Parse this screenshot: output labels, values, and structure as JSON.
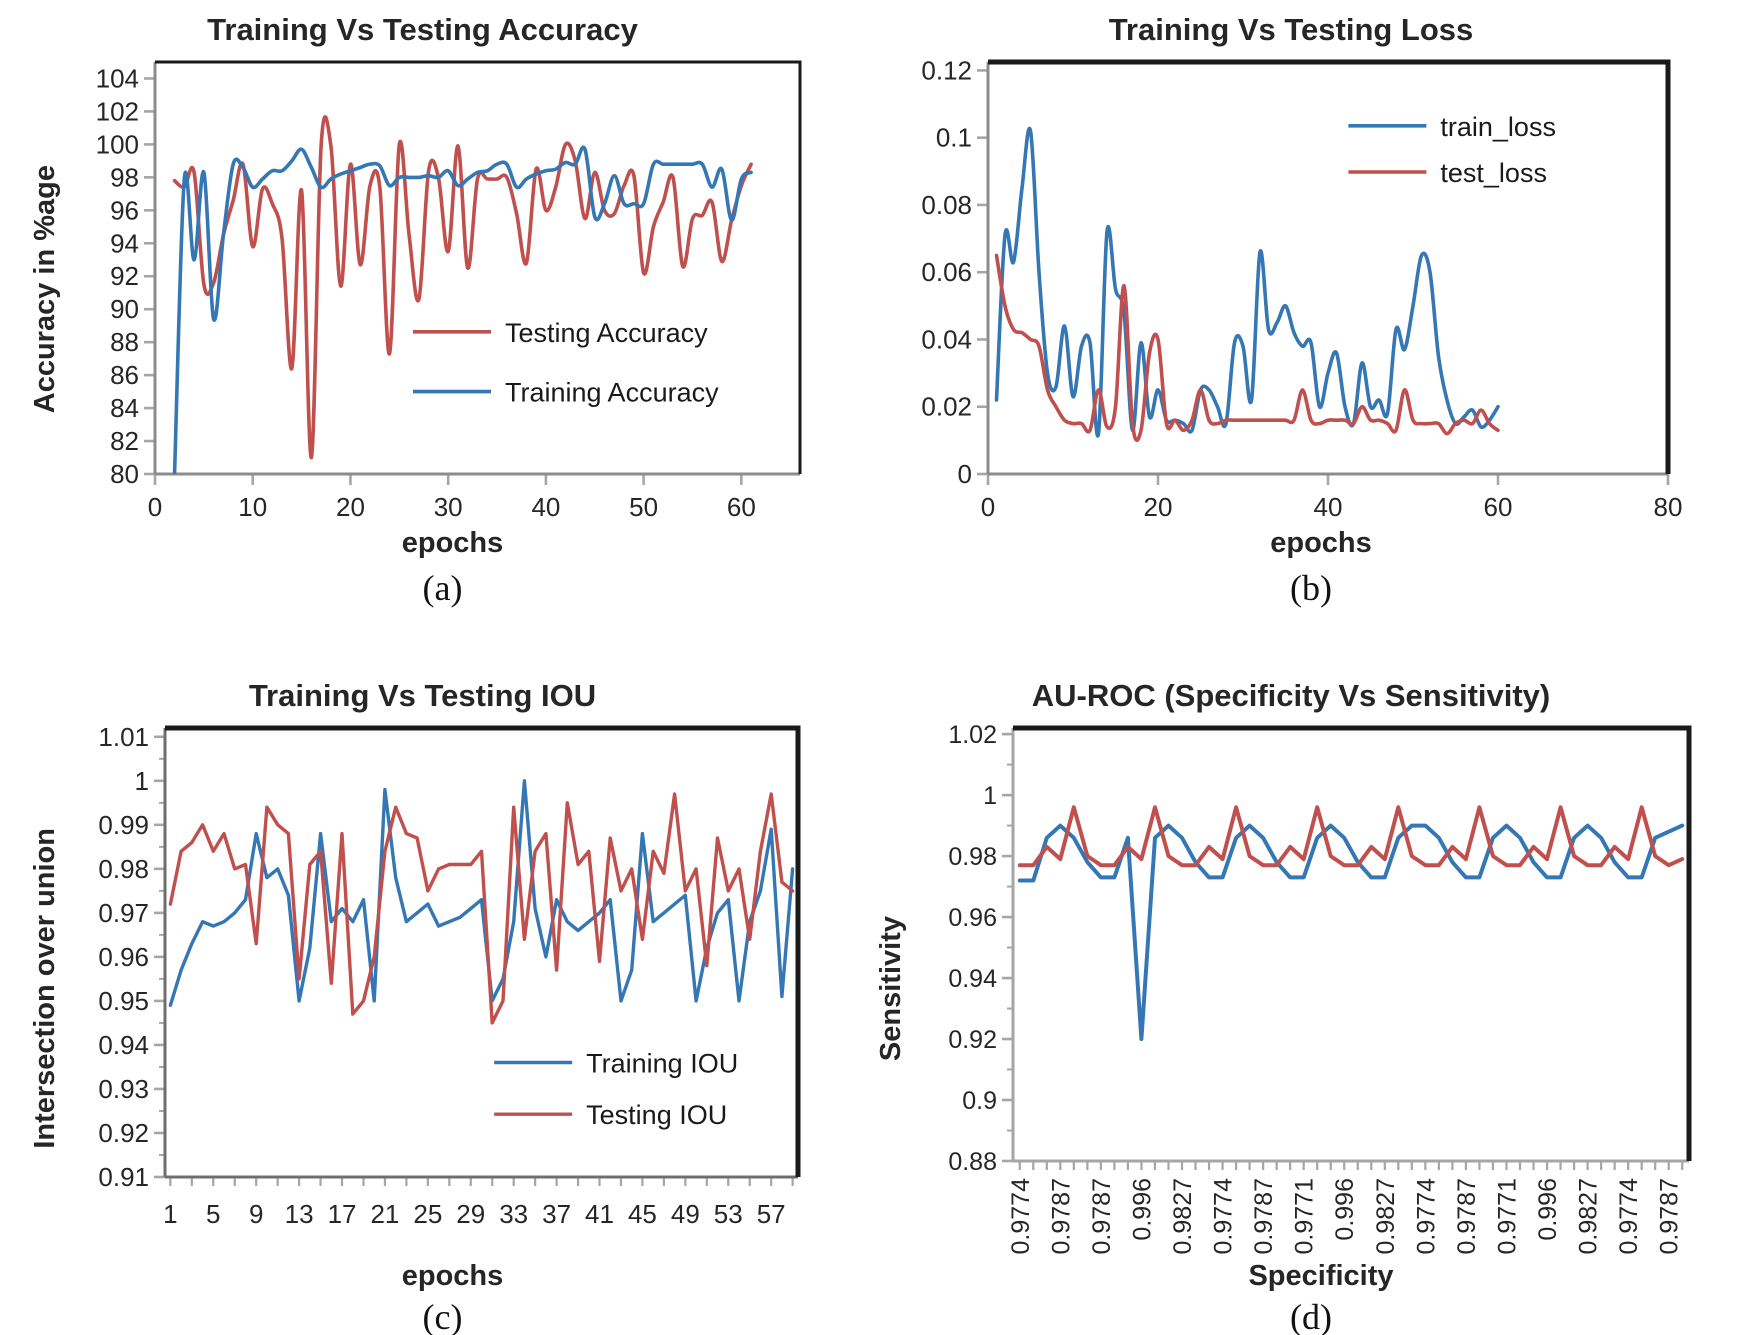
{
  "figure": {
    "background": "#ffffff"
  },
  "chart_data": [
    {
      "type": "line",
      "panel": "a",
      "caption": "(a)",
      "title": "Training Vs Testing Accuracy",
      "xlabel": "epochs",
      "ylabel": "Accuracy in %age",
      "x_type": "numeric",
      "xlim": [
        0,
        66
      ],
      "xticks": [
        0,
        10,
        20,
        30,
        40,
        50,
        60
      ],
      "ylim": [
        80,
        105
      ],
      "yticks": [
        80,
        82,
        84,
        86,
        88,
        90,
        92,
        94,
        96,
        98,
        100,
        102,
        104
      ],
      "ytick_labels": [
        "80",
        "82",
        "84",
        "86",
        "88",
        "90",
        "92",
        "94",
        "96",
        "98",
        "100",
        "102",
        "104"
      ],
      "grid": false,
      "legend_position": "lower-right-inside",
      "legend": {
        "x": 0.4,
        "y": 0.655,
        "dy": 0.145
      },
      "series": [
        {
          "name": "Testing Accuracy",
          "color": "#C0504D",
          "smooth": true,
          "x_start": 2,
          "values": [
            97.8,
            97.4,
            98.3,
            91.5,
            91.6,
            94.5,
            96.6,
            98.8,
            93.8,
            97.3,
            96.4,
            94.3,
            86.4,
            97.2,
            81.0,
            99.9,
            99.9,
            91.4,
            98.8,
            92.7,
            97.5,
            97.4,
            87.3,
            100.0,
            94.5,
            90.6,
            98.4,
            98.0,
            93.5,
            99.9,
            92.5,
            97.9,
            97.9,
            97.9,
            98.0,
            95.8,
            92.8,
            98.5,
            96.0,
            97.4,
            100.0,
            99.0,
            95.5,
            98.3,
            96.0,
            95.8,
            97.5,
            98.1,
            92.2,
            95.0,
            96.5,
            98.0,
            92.6,
            95.5,
            95.7,
            96.5,
            92.9,
            95.4,
            97.5,
            98.8
          ]
        },
        {
          "name": "Training Accuracy",
          "color": "#3577B4",
          "smooth": true,
          "x_start": 2,
          "values": [
            80.0,
            97.9,
            93.0,
            98.3,
            89.4,
            94.5,
            98.8,
            98.6,
            97.4,
            97.9,
            98.4,
            98.4,
            99.0,
            99.7,
            98.6,
            97.4,
            97.9,
            98.2,
            98.4,
            98.6,
            98.8,
            98.7,
            97.5,
            98.0,
            98.0,
            98.0,
            98.1,
            98.0,
            98.4,
            97.5,
            97.9,
            98.3,
            98.4,
            98.8,
            98.8,
            97.4,
            97.9,
            98.2,
            98.4,
            98.5,
            98.9,
            98.8,
            99.7,
            95.6,
            96.4,
            98.1,
            96.4,
            96.4,
            96.4,
            98.8,
            98.8,
            98.8,
            98.8,
            98.8,
            98.8,
            97.4,
            98.5,
            95.4,
            97.9,
            98.3
          ]
        }
      ]
    },
    {
      "type": "line",
      "panel": "b",
      "caption": "(b)",
      "title": "Training Vs Testing Loss",
      "xlabel": "epochs",
      "x_type": "numeric",
      "xlim": [
        0,
        80
      ],
      "xticks": [
        0,
        20,
        40,
        60,
        80
      ],
      "ylim": [
        0,
        0.1225
      ],
      "yticks": [
        0,
        0.02,
        0.04,
        0.06,
        0.08,
        0.1,
        0.12
      ],
      "ytick_labels": [
        "0",
        "0.02",
        "0.04",
        "0.06",
        "0.08",
        "0.1",
        "0.12"
      ],
      "grid": false,
      "legend_position": "upper-right-inside",
      "legend": {
        "x": 0.53,
        "y": 0.155,
        "dy": 0.112
      },
      "series": [
        {
          "name": "train_loss",
          "color": "#3577B4",
          "smooth": true,
          "x_start": 1,
          "values": [
            0.022,
            0.071,
            0.063,
            0.085,
            0.102,
            0.06,
            0.03,
            0.026,
            0.044,
            0.023,
            0.038,
            0.039,
            0.012,
            0.072,
            0.055,
            0.048,
            0.013,
            0.039,
            0.017,
            0.025,
            0.016,
            0.016,
            0.015,
            0.013,
            0.025,
            0.025,
            0.02,
            0.015,
            0.039,
            0.038,
            0.022,
            0.066,
            0.043,
            0.045,
            0.05,
            0.042,
            0.038,
            0.039,
            0.02,
            0.03,
            0.036,
            0.02,
            0.015,
            0.033,
            0.02,
            0.022,
            0.018,
            0.043,
            0.037,
            0.05,
            0.065,
            0.06,
            0.035,
            0.022,
            0.015,
            0.017,
            0.019,
            0.014,
            0.016,
            0.02
          ]
        },
        {
          "name": "test_loss",
          "color": "#C0504D",
          "smooth": true,
          "x_start": 1,
          "values": [
            0.065,
            0.05,
            0.043,
            0.042,
            0.04,
            0.038,
            0.025,
            0.02,
            0.016,
            0.015,
            0.015,
            0.013,
            0.025,
            0.014,
            0.02,
            0.056,
            0.015,
            0.013,
            0.036,
            0.04,
            0.015,
            0.016,
            0.013,
            0.016,
            0.025,
            0.016,
            0.015,
            0.016,
            0.016,
            0.016,
            0.016,
            0.016,
            0.016,
            0.016,
            0.016,
            0.016,
            0.025,
            0.016,
            0.015,
            0.016,
            0.016,
            0.016,
            0.015,
            0.02,
            0.016,
            0.016,
            0.015,
            0.013,
            0.025,
            0.016,
            0.015,
            0.015,
            0.015,
            0.012,
            0.015,
            0.016,
            0.015,
            0.019,
            0.015,
            0.013
          ]
        }
      ]
    },
    {
      "type": "line",
      "panel": "c",
      "caption": "(c)",
      "title": "Training Vs Testing IOU",
      "xlabel": "epochs",
      "ylabel": "Intersection over union",
      "x_type": "category",
      "xtick_labels": [
        "1",
        "5",
        "9",
        "13",
        "17",
        "21",
        "25",
        "29",
        "33",
        "37",
        "41",
        "45",
        "49",
        "53",
        "57"
      ],
      "label_every": 4,
      "tick_every": 2,
      "ylim": [
        0.91,
        1.012
      ],
      "yticks": [
        0.91,
        0.92,
        0.93,
        0.94,
        0.95,
        0.96,
        0.97,
        0.98,
        0.99,
        1.0,
        1.01
      ],
      "ytick_labels": [
        "0.91",
        "0.92",
        "0.93",
        "0.94",
        "0.95",
        "0.96",
        "0.97",
        "0.98",
        "0.99",
        "1",
        "1.01"
      ],
      "y_minor": 0.005,
      "grid": false,
      "legend_position": "lower-right-inside",
      "legend": {
        "x": 0.52,
        "y": 0.745,
        "dy": 0.115
      },
      "series": [
        {
          "name": "Training IOU",
          "color": "#3577B4",
          "smooth": false,
          "values": [
            0.949,
            0.957,
            0.963,
            0.968,
            0.967,
            0.968,
            0.97,
            0.973,
            0.988,
            0.978,
            0.98,
            0.974,
            0.95,
            0.962,
            0.988,
            0.968,
            0.971,
            0.968,
            0.973,
            0.95,
            0.998,
            0.978,
            0.968,
            0.97,
            0.972,
            0.967,
            0.968,
            0.969,
            0.971,
            0.973,
            0.95,
            0.955,
            0.968,
            1.0,
            0.971,
            0.96,
            0.973,
            0.968,
            0.966,
            0.968,
            0.97,
            0.973,
            0.95,
            0.957,
            0.988,
            0.968,
            0.97,
            0.972,
            0.974,
            0.95,
            0.962,
            0.97,
            0.973,
            0.95,
            0.968,
            0.975,
            0.989,
            0.951,
            0.98
          ]
        },
        {
          "name": "Testing IOU",
          "color": "#C0504D",
          "smooth": false,
          "values": [
            0.972,
            0.984,
            0.986,
            0.99,
            0.984,
            0.988,
            0.98,
            0.981,
            0.963,
            0.994,
            0.99,
            0.988,
            0.955,
            0.981,
            0.984,
            0.954,
            0.988,
            0.947,
            0.95,
            0.96,
            0.984,
            0.994,
            0.988,
            0.987,
            0.975,
            0.98,
            0.981,
            0.981,
            0.981,
            0.984,
            0.945,
            0.95,
            0.994,
            0.964,
            0.984,
            0.988,
            0.957,
            0.995,
            0.981,
            0.984,
            0.959,
            0.987,
            0.975,
            0.98,
            0.964,
            0.984,
            0.979,
            0.997,
            0.975,
            0.98,
            0.958,
            0.987,
            0.975,
            0.98,
            0.964,
            0.984,
            0.997,
            0.977,
            0.975
          ]
        }
      ]
    },
    {
      "type": "line",
      "panel": "d",
      "caption": "(d)",
      "title": "AU-ROC (Specificity Vs Sensitivity)",
      "xlabel": "Specificity",
      "ylabel": "Sensitivity",
      "x_type": "category",
      "xtick_labels": [
        "0.9774",
        "0.9787",
        "0.9787",
        "0.996",
        "0.9827",
        "0.9774",
        "0.9787",
        "0.9771",
        "0.996",
        "0.9827",
        "0.9774",
        "0.9787",
        "0.9771",
        "0.996",
        "0.9827",
        "0.9774",
        "0.9787"
      ],
      "label_every": 3,
      "tick_every": 1,
      "rotate_xlabels": -90,
      "ylim": [
        0.88,
        1.022
      ],
      "yticks": [
        0.88,
        0.9,
        0.92,
        0.94,
        0.96,
        0.98,
        1.0,
        1.02
      ],
      "ytick_labels": [
        "0.88",
        "0.9",
        "0.92",
        "0.94",
        "0.96",
        "0.98",
        "1",
        "1.02"
      ],
      "y_minor": 0.01,
      "grid": false,
      "legend_position": "none",
      "series": [
        {
          "name": "",
          "color": "#3577B4",
          "smooth": false,
          "values": [
            0.972,
            0.972,
            0.986,
            0.99,
            0.986,
            0.978,
            0.973,
            0.973,
            0.986,
            0.92,
            0.986,
            0.99,
            0.986,
            0.978,
            0.973,
            0.973,
            0.986,
            0.99,
            0.986,
            0.978,
            0.973,
            0.973,
            0.986,
            0.99,
            0.986,
            0.978,
            0.973,
            0.973,
            0.986,
            0.99,
            0.99,
            0.986,
            0.978,
            0.973,
            0.973,
            0.986,
            0.99,
            0.986,
            0.978,
            0.973,
            0.973,
            0.986,
            0.99,
            0.986,
            0.978,
            0.973,
            0.973,
            0.986,
            0.988,
            0.99
          ]
        },
        {
          "name": "",
          "color": "#C0504D",
          "smooth": false,
          "values": [
            0.977,
            0.977,
            0.983,
            0.979,
            0.996,
            0.98,
            0.977,
            0.977,
            0.983,
            0.979,
            0.996,
            0.98,
            0.977,
            0.977,
            0.983,
            0.979,
            0.996,
            0.98,
            0.977,
            0.977,
            0.983,
            0.979,
            0.996,
            0.98,
            0.977,
            0.977,
            0.983,
            0.979,
            0.996,
            0.98,
            0.977,
            0.977,
            0.983,
            0.979,
            0.996,
            0.98,
            0.977,
            0.977,
            0.983,
            0.979,
            0.996,
            0.98,
            0.977,
            0.977,
            0.983,
            0.979,
            0.996,
            0.98,
            0.977,
            0.979
          ]
        }
      ]
    }
  ]
}
